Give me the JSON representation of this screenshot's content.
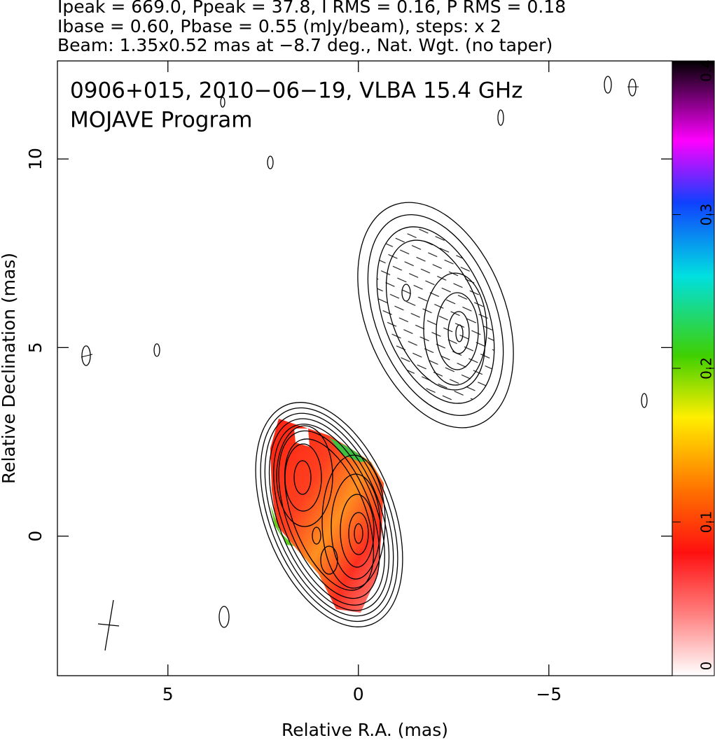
{
  "chart_data": {
    "type": "contour",
    "header": [
      "Ipeak = 669.0, Ppeak = 37.8, I RMS = 0.16, P RMS = 0.18",
      "Ibase = 0.60, Pbase = 0.55 (mJy/beam), steps: x 2",
      "Beam: 1.35x0.52 mas at −8.7 deg., Nat. Wgt. (no taper)"
    ],
    "annotations": [
      "0906+015, 2010−06−19, VLBA 15.4 GHz",
      "MOJAVE Program"
    ],
    "x_label": "Relative R.A. (mas)",
    "y_label": "Relative Declination (mas)",
    "xlim": [
      7.9,
      -8.24
    ],
    "xticks": [
      5,
      0,
      {
        "value": -5,
        "label": "−5"
      }
    ],
    "ylim": [
      -3.7,
      12.6
    ],
    "yticks": [
      0,
      5,
      10
    ],
    "colorbar_lim": [
      0,
      0.4
    ],
    "colorbar_ticks": [
      0,
      0.1,
      0.2,
      0.3,
      0.4
    ]
  }
}
